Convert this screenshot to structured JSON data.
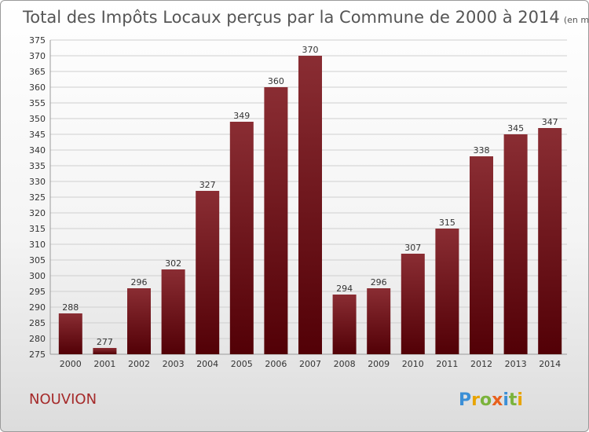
{
  "chart_data": {
    "type": "bar",
    "title": "Total des Impôts Locaux perçus par la Commune de 2000 à 2014",
    "unit": "(en milliers d'€)",
    "categories": [
      "2000",
      "2001",
      "2002",
      "2003",
      "2004",
      "2005",
      "2006",
      "2007",
      "2008",
      "2009",
      "2010",
      "2011",
      "2012",
      "2013",
      "2014"
    ],
    "values": [
      288,
      277,
      296,
      302,
      327,
      349,
      360,
      370,
      294,
      296,
      307,
      315,
      338,
      345,
      347
    ],
    "ylim": [
      275,
      375
    ],
    "ytick_step": 5,
    "grid": true,
    "bar_color": "#7a1f25"
  },
  "place": "NOUVION",
  "logo_text": "Proxiti"
}
